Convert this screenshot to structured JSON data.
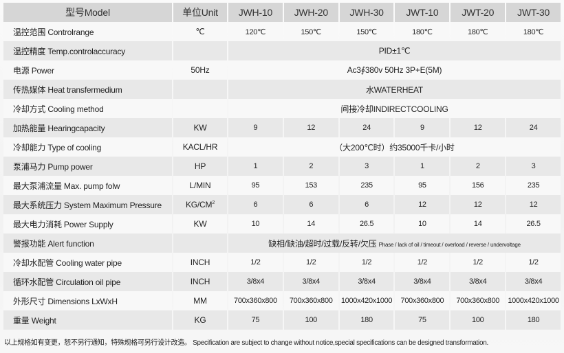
{
  "header": {
    "model": "型号Model",
    "unit": "单位Unit",
    "models": [
      "JWH-10",
      "JWH-20",
      "JWH-30",
      "JWT-10",
      "JWT-20",
      "JWT-30"
    ]
  },
  "rows": [
    {
      "name": "温控范围 Controlrange",
      "unit": "℃",
      "values": [
        "120℃",
        "150℃",
        "150℃",
        "180℃",
        "180℃",
        "180℃"
      ]
    },
    {
      "name": "温控精度 Temp.controlaccuracy",
      "unit": "",
      "span": "PID±1℃"
    },
    {
      "name": "电源 Power",
      "unit": "50Hz",
      "span": "Ac3∮380v 50Hz 3P+E(5M)"
    },
    {
      "name": "传热媒体 Heat transfermedium",
      "unit": "",
      "span": "水WATERHEAT"
    },
    {
      "name": "冷却方式 Cooling method",
      "unit": "",
      "span": "间接冷却INDIRECTCOOLING"
    },
    {
      "name": "加热能量 Hearingcapacity",
      "unit": "KW",
      "values": [
        "9",
        "12",
        "24",
        "9",
        "12",
        "24"
      ]
    },
    {
      "name": "冷却能力 Type of cooling",
      "unit": "KACL/HR",
      "span": "（大200℃时）约35000千卡/小时"
    },
    {
      "name": "泵浦马力 Pump power",
      "unit": "HP",
      "values": [
        "1",
        "2",
        "3",
        "1",
        "2",
        "3"
      ]
    },
    {
      "name": "最大泵浦流量 Max. pump folw",
      "unit": "L/MIN",
      "values": [
        "95",
        "153",
        "235",
        "95",
        "156",
        "235"
      ]
    },
    {
      "name": "最大系统压力 System Maximum Pressure",
      "unit": "KG/CM",
      "unit_sup": "2",
      "values": [
        "6",
        "6",
        "6",
        "12",
        "12",
        "12"
      ]
    },
    {
      "name": "最大电力消耗 Power Supply",
      "unit": "KW",
      "values": [
        "10",
        "14",
        "26.5",
        "10",
        "14",
        "26.5"
      ]
    },
    {
      "name": "警报功能 Alert function",
      "unit": "",
      "span": "缺相/缺油/超时/过载/反转/欠压",
      "span_small": "Phase / lack of oil / timeout / overload / reverse / undervoltage"
    },
    {
      "name": "冷却水配管 Cooling water pipe",
      "unit": "INCH",
      "values": [
        "1/2",
        "1/2",
        "1/2",
        "1/2",
        "1/2",
        "1/2"
      ]
    },
    {
      "name": "循环水配管 Circulation oil pipe",
      "unit": "INCH",
      "values": [
        "3/8x4",
        "3/8x4",
        "3/8x4",
        "3/8x4",
        "3/8x4",
        "3/8x4"
      ]
    },
    {
      "name": "外形尺寸 Dimensions LxWxH",
      "unit": "MM",
      "values": [
        "700x360x800",
        "700x360x800",
        "1000x420x1000",
        "700x360x800",
        "700x360x800",
        "1000x420x1000"
      ]
    },
    {
      "name": "重量 Weight",
      "unit": "KG",
      "values": [
        "75",
        "100",
        "180",
        "75",
        "100",
        "180"
      ]
    }
  ],
  "footer": "以上规格如有变更，恕不另行通知，特殊规格可另行设计改造。 Specification are subject to change without notice,special specifications can be designed transformation."
}
